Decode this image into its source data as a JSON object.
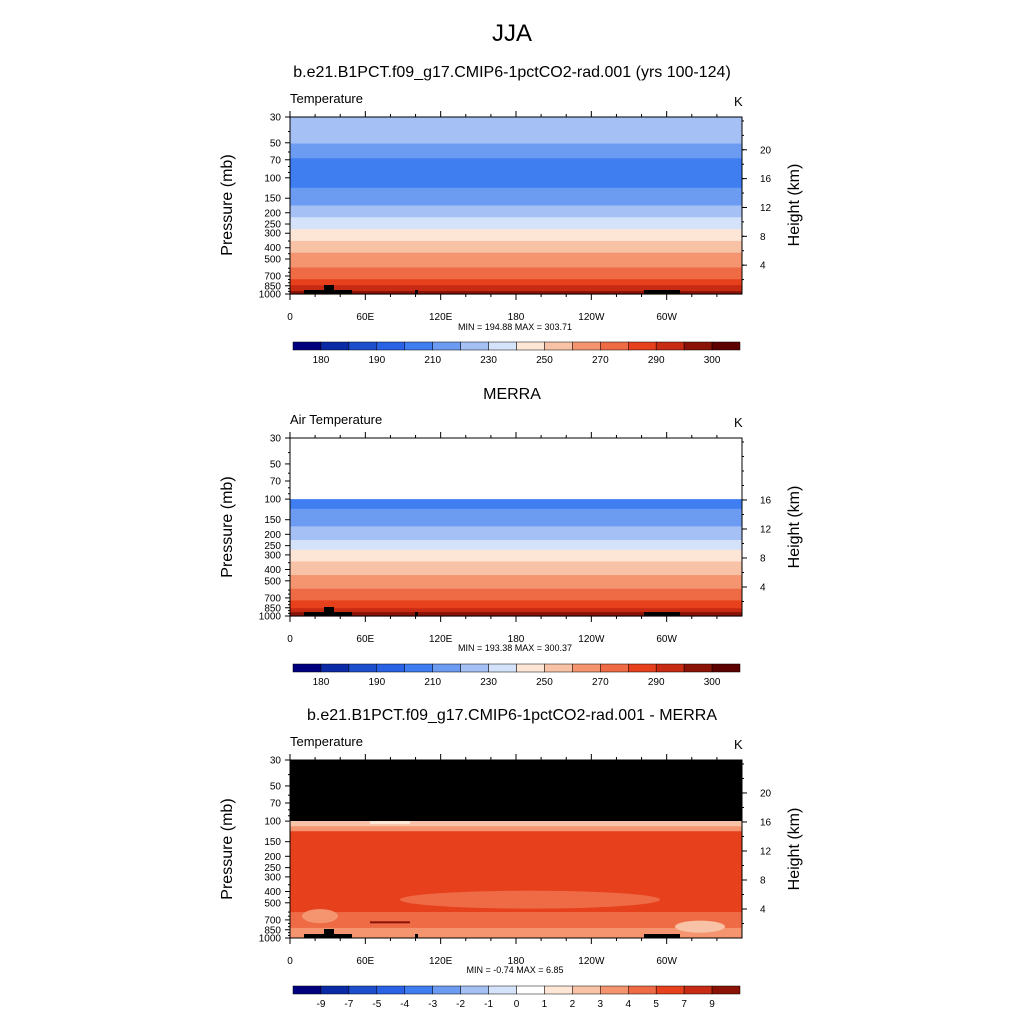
{
  "main_title": "JJA",
  "panels": [
    {
      "title": "b.e21.B1PCT.f09_g17.CMIP6-1pctCO2-rad.001 (yrs 100-124)",
      "label": "Temperature",
      "unit": "K",
      "ylabel": "Pressure (mb)",
      "ylabel_right": "Height (km)",
      "minmax": "MIN = 194.88  MAX = 303.71",
      "pressure_ticks": [
        "30",
        "50",
        "70",
        "100",
        "150",
        "200",
        "250",
        "300",
        "400",
        "500",
        "700",
        "850",
        "1000"
      ],
      "height_ticks": [
        "4",
        "8",
        "12",
        "16",
        "20"
      ],
      "lon_ticks": [
        "0",
        "60E",
        "120E",
        "180",
        "120W",
        "60W"
      ],
      "colorbar_labels": [
        "180",
        "190",
        "210",
        "230",
        "250",
        "270",
        "290",
        "300"
      ]
    },
    {
      "title": "MERRA",
      "label": "Air Temperature",
      "unit": "K",
      "ylabel": "Pressure (mb)",
      "ylabel_right": "Height (km)",
      "minmax": "MIN = 193.38  MAX = 300.37",
      "pressure_ticks": [
        "30",
        "50",
        "70",
        "100",
        "150",
        "200",
        "250",
        "300",
        "400",
        "500",
        "700",
        "850",
        "1000"
      ],
      "height_ticks": [
        "4",
        "8",
        "12",
        "16"
      ],
      "lon_ticks": [
        "0",
        "60E",
        "120E",
        "180",
        "120W",
        "60W"
      ],
      "colorbar_labels": [
        "180",
        "190",
        "210",
        "230",
        "250",
        "270",
        "290",
        "300"
      ]
    },
    {
      "title": "b.e21.B1PCT.f09_g17.CMIP6-1pctCO2-rad.001 - MERRA",
      "label": "Temperature",
      "unit": "K",
      "ylabel": "Pressure (mb)",
      "ylabel_right": "Height (km)",
      "minmax": "MIN =  -0.74  MAX =   6.85",
      "pressure_ticks": [
        "30",
        "50",
        "70",
        "100",
        "150",
        "200",
        "250",
        "300",
        "400",
        "500",
        "700",
        "850",
        "1000"
      ],
      "height_ticks": [
        "4",
        "8",
        "12",
        "16",
        "20"
      ],
      "lon_ticks": [
        "0",
        "60E",
        "120E",
        "180",
        "120W",
        "60W"
      ],
      "colorbar_labels": [
        "-9",
        "-7",
        "-5",
        "-4",
        "-3",
        "-2",
        "-1",
        "0",
        "1",
        "2",
        "3",
        "4",
        "5",
        "7",
        "9"
      ]
    }
  ],
  "chart_data": [
    {
      "type": "heatmap",
      "title": "b.e21.B1PCT.f09_g17.CMIP6-1pctCO2-rad.001 (yrs 100-124)",
      "variable": "Temperature",
      "units": "K",
      "xlabel": "",
      "ylabel": "Pressure (mb)",
      "ylabel_right": "Height (km)",
      "x_ticks": [
        "0",
        "60E",
        "120E",
        "180",
        "120W",
        "60W"
      ],
      "xlim": [
        0,
        360
      ],
      "ylim": [
        1000,
        30
      ],
      "y_scale": "log",
      "pressure_levels": [
        30,
        50,
        70,
        100,
        150,
        200,
        250,
        300,
        400,
        500,
        700,
        850,
        1000
      ],
      "layer_temperature_K": [
        230,
        220,
        210,
        205,
        215,
        225,
        235,
        245,
        255,
        265,
        275,
        290,
        300
      ],
      "min": 194.88,
      "max": 303.71,
      "contour_levels": [
        180,
        185,
        190,
        200,
        210,
        220,
        230,
        240,
        250,
        260,
        270,
        280,
        290,
        295,
        300
      ],
      "colors": [
        "#00007f",
        "#0a2ba5",
        "#1d4fcc",
        "#2a62e6",
        "#3f7ef0",
        "#6c9bf2",
        "#a4c0f5",
        "#d4e2fa",
        "#fde6d6",
        "#f8c2a6",
        "#f49570",
        "#ee6b45",
        "#e6401c",
        "#c72b13",
        "#8b1207",
        "#5c0000"
      ]
    },
    {
      "type": "heatmap",
      "title": "MERRA",
      "variable": "Air Temperature",
      "units": "K",
      "xlabel": "",
      "ylabel": "Pressure (mb)",
      "ylabel_right": "Height (km)",
      "x_ticks": [
        "0",
        "60E",
        "120E",
        "180",
        "120W",
        "60W"
      ],
      "xlim": [
        0,
        360
      ],
      "ylim": [
        1000,
        30
      ],
      "y_scale": "log",
      "pressure_levels": [
        100,
        150,
        200,
        250,
        300,
        400,
        500,
        700,
        850,
        1000
      ],
      "layer_temperature_K": [
        205,
        215,
        225,
        235,
        245,
        255,
        265,
        275,
        290,
        300
      ],
      "note_missing_above_mb": 100,
      "min": 193.38,
      "max": 300.37,
      "contour_levels": [
        180,
        185,
        190,
        200,
        210,
        220,
        230,
        240,
        250,
        260,
        270,
        280,
        290,
        295,
        300
      ]
    },
    {
      "type": "heatmap",
      "title": "b.e21.B1PCT.f09_g17.CMIP6-1pctCO2-rad.001 - MERRA",
      "variable": "Temperature",
      "units": "K",
      "xlabel": "",
      "ylabel": "Pressure (mb)",
      "ylabel_right": "Height (km)",
      "x_ticks": [
        "0",
        "60E",
        "120E",
        "180",
        "120W",
        "60W"
      ],
      "xlim": [
        0,
        360
      ],
      "ylim": [
        1000,
        30
      ],
      "y_scale": "log",
      "min": -0.74,
      "max": 6.85,
      "contour_levels": [
        -9,
        -7,
        -5,
        -4,
        -3,
        -2,
        -1,
        0,
        1,
        2,
        3,
        4,
        5,
        7,
        9
      ],
      "dominant_value": 5,
      "missing_above_mb": 100
    }
  ]
}
